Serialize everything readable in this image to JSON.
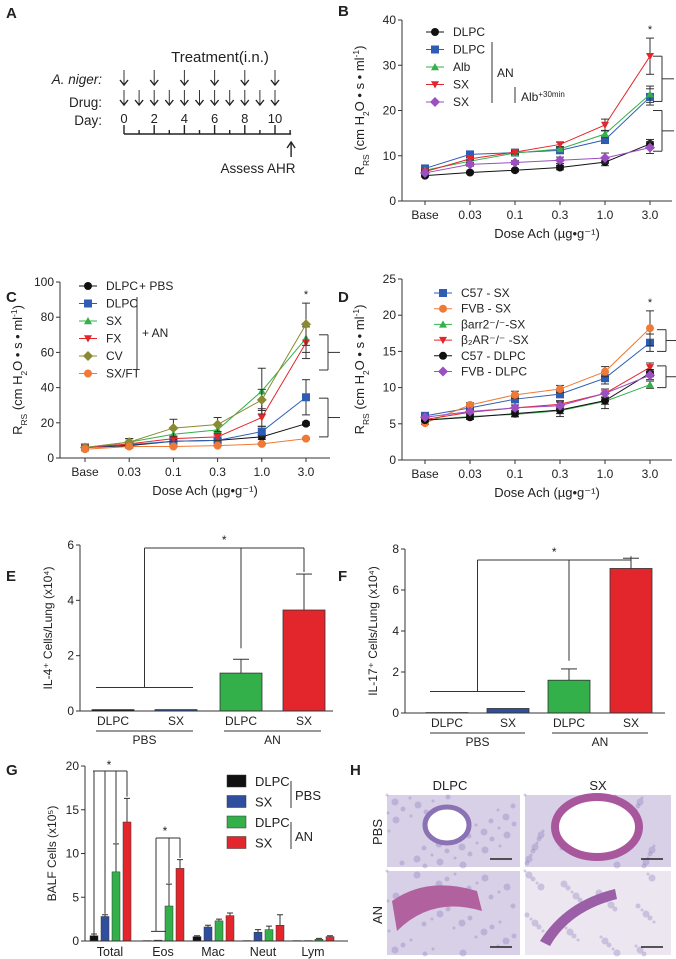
{
  "panel_letters": [
    "A",
    "B",
    "C",
    "D",
    "E",
    "F",
    "G",
    "H"
  ],
  "panel_a": {
    "title": "Treatment(i.n.)",
    "rows": [
      "A. niger:",
      "Drug:",
      "Day:"
    ],
    "days": [
      "0",
      "2",
      "4",
      "6",
      "8",
      "10"
    ],
    "a_niger_days": [
      0,
      2,
      4,
      6,
      8,
      10
    ],
    "drug_days": [
      0,
      1,
      2,
      3,
      4,
      5,
      6,
      7,
      8,
      9,
      10
    ],
    "assess": "Assess AHR"
  },
  "dose_ylabel": [
    {
      "t": "R"
    },
    {
      "t": "RS",
      "sub": true
    },
    {
      "t": " (cm H"
    },
    {
      "t": "2",
      "sub": true
    },
    {
      "t": "O • s • ml"
    },
    {
      "t": "-1",
      "sup": true
    },
    {
      "t": ")"
    }
  ],
  "chart_data": [
    {
      "id": "B",
      "type": "line",
      "categories": [
        "Base",
        "0.03",
        "0.1",
        "0.3",
        "1.0",
        "3.0"
      ],
      "xlabel": "Dose Ach   (µg•g⁻¹)",
      "ylim": [
        0,
        40
      ],
      "yticks": [
        0,
        10,
        20,
        30,
        40
      ],
      "annotation": "*",
      "legend_groups": [
        {
          "label": "AN",
          "from": 1,
          "to": 4
        },
        {
          "label": "Alb+30min",
          "from": 4,
          "to": 4
        }
      ],
      "series": [
        {
          "name": "DLPC",
          "color": "#111111",
          "marker": "circle",
          "values": [
            5.6,
            6.3,
            6.8,
            7.4,
            8.6,
            12.6
          ],
          "error": [
            0.3,
            0.3,
            0.3,
            0.5,
            0.8,
            1.0
          ]
        },
        {
          "name": "DLPC",
          "color": "#2f5db4",
          "marker": "square",
          "values": [
            7.2,
            10.3,
            10.7,
            11.2,
            13.5,
            23.0
          ],
          "error": [
            0.3,
            0.4,
            0.4,
            0.5,
            0.8,
            1.8
          ]
        },
        {
          "name": "Alb",
          "color": "#33b04a",
          "marker": "triangle-up",
          "values": [
            6.8,
            8.8,
            10.6,
            11.5,
            14.8,
            23.6
          ],
          "error": [
            0.3,
            0.4,
            0.4,
            0.5,
            0.8,
            1.8
          ]
        },
        {
          "name": "SX",
          "color": "#e3262b",
          "marker": "triangle-down",
          "values": [
            6.5,
            9.3,
            10.8,
            12.5,
            16.8,
            32.0
          ],
          "error": [
            0.3,
            0.4,
            0.4,
            0.5,
            1.3,
            4.0
          ]
        },
        {
          "name": "SX",
          "color": "#9b4fc0",
          "marker": "diamond",
          "values": [
            6.2,
            8.1,
            8.5,
            9.0,
            9.5,
            11.8
          ],
          "error": [
            0.3,
            0.4,
            0.4,
            0.7,
            1.1,
            1.3
          ]
        }
      ]
    },
    {
      "id": "C",
      "type": "line",
      "categories": [
        "Base",
        "0.03",
        "0.1",
        "0.3",
        "1.0",
        "3.0"
      ],
      "xlabel": "Dose Ach   (µg•g⁻¹)",
      "ylim": [
        0,
        100
      ],
      "yticks": [
        0,
        20,
        40,
        60,
        80,
        100
      ],
      "annotation": "*",
      "legend_groups": [
        {
          "label": "+ PBS",
          "from": 0,
          "to": 0
        },
        {
          "label": "+ AN",
          "from": 1,
          "to": 5
        }
      ],
      "series": [
        {
          "name": "DLPC",
          "color": "#111111",
          "marker": "circle",
          "values": [
            6,
            7,
            9.5,
            10,
            12,
            19.5
          ],
          "error": [
            0.5,
            0.5,
            1,
            1,
            1.5,
            1
          ]
        },
        {
          "name": "DLPC",
          "color": "#2f5db4",
          "marker": "square",
          "values": [
            6,
            7.5,
            9.5,
            10,
            15,
            34.5
          ],
          "error": [
            0.5,
            0.5,
            1,
            1,
            3,
            10
          ]
        },
        {
          "name": "SX",
          "color": "#33b04a",
          "marker": "triangle-up",
          "values": [
            6,
            9,
            13.5,
            16,
            38,
            68
          ],
          "error": [
            0.5,
            2,
            3,
            3,
            13,
            8
          ]
        },
        {
          "name": "FX",
          "color": "#e3262b",
          "marker": "triangle-down",
          "values": [
            6,
            8,
            11,
            12,
            23,
            65.5
          ],
          "error": [
            0.5,
            1,
            1.5,
            2,
            5,
            9
          ]
        },
        {
          "name": "CV",
          "color": "#8a8a32",
          "marker": "diamond",
          "values": [
            6,
            9,
            17,
            19,
            33,
            76
          ],
          "error": [
            0.5,
            2,
            5,
            4,
            6,
            12
          ]
        },
        {
          "name": "SX/FT",
          "color": "#f07a35",
          "marker": "circle",
          "values": [
            5,
            6.5,
            6.5,
            7,
            8,
            11
          ],
          "error": [
            0.3,
            0.3,
            0.3,
            0.3,
            0.5,
            0.5
          ]
        }
      ]
    },
    {
      "id": "D",
      "type": "line",
      "categories": [
        "Base",
        "0.03",
        "0.1",
        "0.3",
        "1.0",
        "3.0"
      ],
      "xlabel": "Dose Ach   (µg•g⁻¹)",
      "ylim": [
        0,
        25
      ],
      "yticks": [
        0,
        5,
        10,
        15,
        20,
        25
      ],
      "annotation": "*",
      "series": [
        {
          "name": "C57 - SX",
          "color": "#2f5db4",
          "marker": "square",
          "values": [
            6.1,
            7.2,
            8.4,
            9.1,
            11.3,
            16.2
          ],
          "error": [
            0.2,
            0.3,
            0.5,
            0.5,
            0.8,
            1.2
          ]
        },
        {
          "name": "FVB - SX",
          "color": "#f07a35",
          "marker": "circle",
          "values": [
            5.1,
            7.6,
            9.0,
            9.8,
            12.2,
            18.2
          ],
          "error": [
            0.2,
            0.3,
            0.5,
            0.5,
            0.7,
            2.4
          ]
        },
        {
          "name": "βarr2⁻/⁻-SX",
          "color": "#33b04a",
          "marker": "triangle-up",
          "values": [
            5.5,
            6.0,
            6.3,
            6.8,
            8.1,
            10.4
          ],
          "error": [
            0.2,
            0.3,
            0.3,
            0.8,
            1.0,
            0.5
          ]
        },
        {
          "name": "β₂AR⁻/⁻ -SX",
          "color": "#e3262b",
          "marker": "triangle-down",
          "values": [
            5.6,
            6.6,
            7.2,
            7.7,
            9.2,
            12.8
          ],
          "error": [
            0.2,
            0.3,
            0.4,
            0.5,
            0.6,
            0.6
          ]
        },
        {
          "name": "C57 - DLPC",
          "color": "#111111",
          "marker": "circle",
          "values": [
            5.5,
            5.9,
            6.4,
            6.9,
            8.2,
            12.0
          ],
          "error": [
            0.2,
            0.3,
            0.4,
            0.5,
            0.5,
            0.5
          ]
        },
        {
          "name": "FVB - DLPC",
          "color": "#9b4fc0",
          "marker": "diamond",
          "values": [
            5.9,
            6.7,
            7.2,
            7.5,
            9.2,
            11.7
          ],
          "error": [
            0.2,
            0.3,
            0.4,
            0.5,
            0.6,
            0.6
          ]
        }
      ]
    },
    {
      "id": "E",
      "type": "bar",
      "ylabel": "IL-4⁺ Cells/Lung (x10⁴)",
      "ylim": [
        0,
        6
      ],
      "yticks": [
        0,
        2,
        4,
        6
      ],
      "categories": [
        "DLPC",
        "SX",
        "DLPC",
        "SX"
      ],
      "groups": [
        "PBS",
        "AN"
      ],
      "values": [
        0.05,
        0.05,
        1.37,
        3.65
      ],
      "error": [
        0,
        0,
        0.5,
        1.3
      ],
      "colors": [
        "#111111",
        "#2f4f9e",
        "#33b04a",
        "#e3262b"
      ],
      "annotation": "*"
    },
    {
      "id": "F",
      "type": "bar",
      "ylabel": "IL-17⁺ Cells/Lung (x10⁴)",
      "ylim": [
        0,
        8
      ],
      "yticks": [
        0,
        2,
        4,
        6,
        8
      ],
      "categories": [
        "DLPC",
        "SX",
        "DLPC",
        "SX"
      ],
      "groups": [
        "PBS",
        "AN"
      ],
      "values": [
        0.02,
        0.22,
        1.6,
        7.05
      ],
      "error": [
        0,
        0.03,
        0.55,
        0.5
      ],
      "colors": [
        "#111111",
        "#2f4f9e",
        "#33b04a",
        "#e3262b"
      ],
      "annotation": "*"
    },
    {
      "id": "G",
      "type": "bar",
      "ylabel": "BALF Cells (x10⁵)",
      "ylim": [
        0,
        20
      ],
      "yticks": [
        0,
        5,
        10,
        15,
        20
      ],
      "categories": [
        "Total",
        "Eos",
        "Mac",
        "Neut",
        "Lym"
      ],
      "legend_groups": [
        "PBS",
        "AN"
      ],
      "annotation": "*",
      "series": [
        {
          "name": "DLPC",
          "group": "PBS",
          "color": "#111111",
          "values": [
            0.6,
            0.05,
            0.5,
            0.05,
            0.05
          ],
          "error": [
            0.2,
            0,
            0.1,
            0,
            0
          ]
        },
        {
          "name": "SX",
          "group": "PBS",
          "color": "#2f4f9e",
          "values": [
            2.8,
            0.1,
            1.6,
            1.0,
            0.05
          ],
          "error": [
            0.2,
            0.05,
            0.2,
            0.3,
            0
          ]
        },
        {
          "name": "DLPC",
          "group": "AN",
          "color": "#33b04a",
          "values": [
            7.9,
            4.0,
            2.3,
            1.3,
            0.2
          ],
          "error": [
            3.2,
            2.5,
            0.2,
            0.4,
            0.1
          ]
        },
        {
          "name": "SX",
          "group": "AN",
          "color": "#e3262b",
          "values": [
            13.6,
            8.3,
            2.9,
            1.8,
            0.5
          ],
          "error": [
            2.7,
            1.0,
            0.3,
            1.2,
            0.1
          ]
        }
      ]
    }
  ],
  "panel_h": {
    "columns": [
      "DLPC",
      "SX"
    ],
    "rows": [
      "PBS",
      "AN"
    ]
  }
}
